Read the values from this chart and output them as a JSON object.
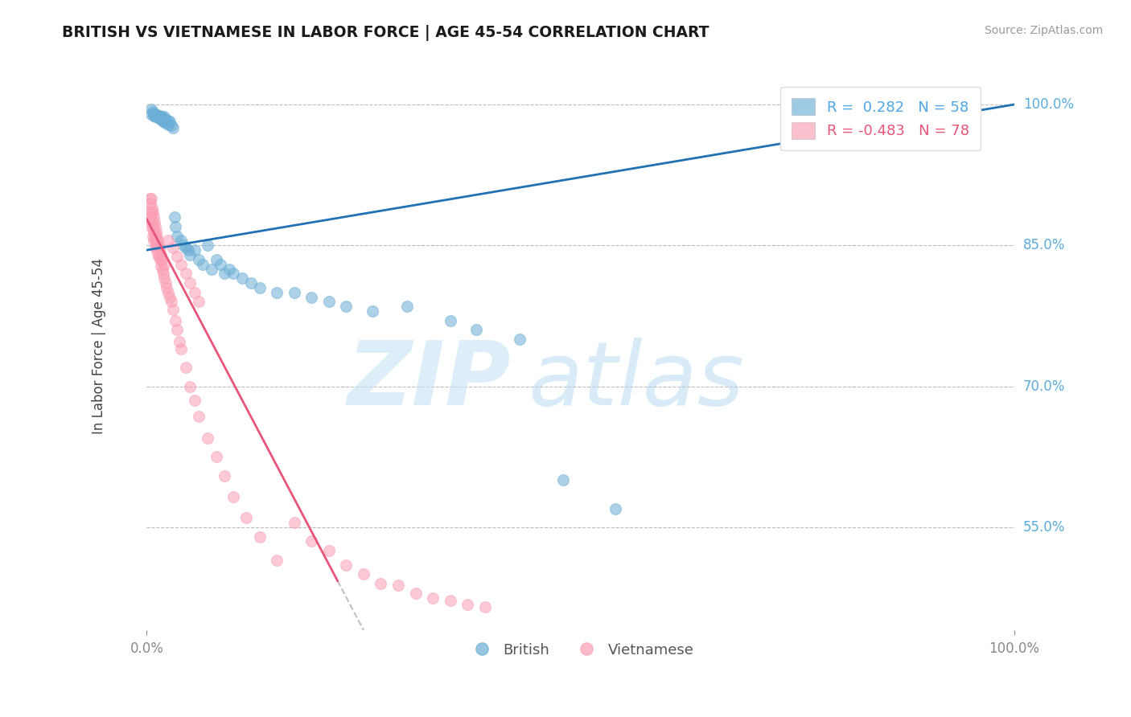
{
  "title": "BRITISH VS VIETNAMESE IN LABOR FORCE | AGE 45-54 CORRELATION CHART",
  "source": "Source: ZipAtlas.com",
  "ylabel": "In Labor Force | Age 45-54",
  "xlim": [
    0.0,
    1.0
  ],
  "ylim": [
    0.44,
    1.045
  ],
  "yticks": [
    0.55,
    0.7,
    0.85,
    1.0
  ],
  "ytick_labels": [
    "55.0%",
    "70.0%",
    "85.0%",
    "100.0%"
  ],
  "xtick_labels": [
    "0.0%",
    "100.0%"
  ],
  "xticks": [
    0.0,
    1.0
  ],
  "british_color": "#6baed6",
  "vietnamese_color": "#fa9fb5",
  "british_R": 0.282,
  "british_N": 58,
  "vietnamese_R": -0.483,
  "vietnamese_N": 78,
  "trend_british_color": "#2171b5",
  "trend_vietnamese_color": "#e8547a",
  "british_x": [
    0.005,
    0.005,
    0.007,
    0.008,
    0.008,
    0.01,
    0.01,
    0.012,
    0.013,
    0.015,
    0.015,
    0.016,
    0.017,
    0.018,
    0.018,
    0.019,
    0.02,
    0.02,
    0.022,
    0.023,
    0.025,
    0.025,
    0.027,
    0.028,
    0.03,
    0.032,
    0.033,
    0.035,
    0.04,
    0.042,
    0.045,
    0.048,
    0.05,
    0.055,
    0.06,
    0.065,
    0.07,
    0.075,
    0.08,
    0.085,
    0.09,
    0.095,
    0.1,
    0.11,
    0.12,
    0.13,
    0.15,
    0.17,
    0.19,
    0.21,
    0.23,
    0.26,
    0.3,
    0.35,
    0.38,
    0.43,
    0.48,
    0.54
  ],
  "british_y": [
    0.995,
    0.99,
    0.992,
    0.991,
    0.988,
    0.99,
    0.987,
    0.989,
    0.986,
    0.988,
    0.985,
    0.987,
    0.984,
    0.986,
    0.983,
    0.985,
    0.987,
    0.981,
    0.984,
    0.98,
    0.983,
    0.979,
    0.982,
    0.978,
    0.975,
    0.88,
    0.87,
    0.86,
    0.855,
    0.85,
    0.848,
    0.845,
    0.84,
    0.845,
    0.835,
    0.83,
    0.85,
    0.825,
    0.835,
    0.83,
    0.82,
    0.825,
    0.82,
    0.815,
    0.81,
    0.805,
    0.8,
    0.8,
    0.795,
    0.79,
    0.785,
    0.78,
    0.785,
    0.77,
    0.76,
    0.75,
    0.6,
    0.57
  ],
  "vietnamese_x": [
    0.003,
    0.003,
    0.004,
    0.004,
    0.005,
    0.005,
    0.005,
    0.006,
    0.006,
    0.007,
    0.007,
    0.007,
    0.008,
    0.008,
    0.008,
    0.009,
    0.009,
    0.01,
    0.01,
    0.01,
    0.011,
    0.011,
    0.012,
    0.012,
    0.013,
    0.013,
    0.014,
    0.014,
    0.015,
    0.015,
    0.016,
    0.016,
    0.017,
    0.018,
    0.019,
    0.02,
    0.02,
    0.022,
    0.023,
    0.025,
    0.027,
    0.028,
    0.03,
    0.033,
    0.035,
    0.038,
    0.04,
    0.045,
    0.05,
    0.055,
    0.06,
    0.07,
    0.08,
    0.09,
    0.1,
    0.115,
    0.13,
    0.15,
    0.17,
    0.19,
    0.21,
    0.23,
    0.25,
    0.27,
    0.29,
    0.31,
    0.33,
    0.35,
    0.37,
    0.39,
    0.025,
    0.03,
    0.035,
    0.04,
    0.045,
    0.05,
    0.055,
    0.06
  ],
  "vietnamese_y": [
    0.9,
    0.885,
    0.895,
    0.88,
    0.9,
    0.885,
    0.87,
    0.89,
    0.875,
    0.885,
    0.87,
    0.86,
    0.88,
    0.865,
    0.855,
    0.875,
    0.862,
    0.87,
    0.858,
    0.848,
    0.865,
    0.852,
    0.86,
    0.848,
    0.855,
    0.842,
    0.85,
    0.838,
    0.848,
    0.835,
    0.84,
    0.828,
    0.835,
    0.825,
    0.82,
    0.83,
    0.815,
    0.81,
    0.805,
    0.8,
    0.795,
    0.79,
    0.782,
    0.77,
    0.76,
    0.748,
    0.74,
    0.72,
    0.7,
    0.685,
    0.668,
    0.645,
    0.625,
    0.605,
    0.582,
    0.56,
    0.54,
    0.515,
    0.555,
    0.535,
    0.525,
    0.51,
    0.5,
    0.49,
    0.488,
    0.48,
    0.475,
    0.472,
    0.468,
    0.465,
    0.855,
    0.848,
    0.838,
    0.83,
    0.82,
    0.81,
    0.8,
    0.79
  ]
}
